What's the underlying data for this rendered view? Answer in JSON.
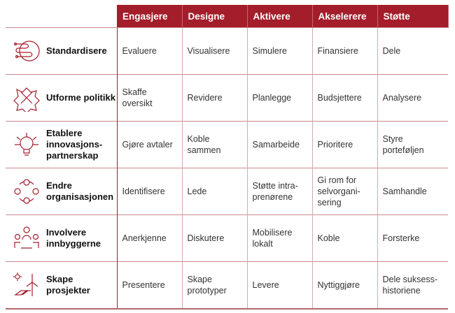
{
  "columns": [
    "Engasjere",
    "Designe",
    "Aktivere",
    "Akselerere",
    "Støtte"
  ],
  "rows": [
    {
      "label": "Standardisere",
      "icon": "tangled-globe-icon",
      "cells": [
        "Evaluere",
        "Visualisere",
        "Simulere",
        "Finansiere",
        "Dele"
      ]
    },
    {
      "label": "Utforme politikk",
      "icon": "puzzle-network-icon",
      "cells": [
        "Skaffe oversikt",
        "Revidere",
        "Planlegge",
        "Budsjettere",
        "Analysere"
      ]
    },
    {
      "label": "Etablere innovasjons-partnerskap",
      "icon": "lightbulb-network-icon",
      "cells": [
        "Gjøre avtaler",
        "Koble sammen",
        "Samarbeide",
        "Prioritere",
        "Styre porteføljen"
      ]
    },
    {
      "label": "Endre organisasjonen",
      "icon": "people-cycle-icon",
      "cells": [
        "Identifisere",
        "Lede",
        "Støtte intra-prenørene",
        "Gi rom for selvorgani-sering",
        "Samhandle"
      ]
    },
    {
      "label": "Involvere innbyggerne",
      "icon": "people-group-icon",
      "cells": [
        "Anerkjenne",
        "Diskutere",
        "Mobilisere lokalt",
        "Koble",
        "Forsterke"
      ]
    },
    {
      "label": "Skape prosjekter",
      "icon": "renewable-energy-icon",
      "cells": [
        "Presentere",
        "Skape prototyper",
        "Levere",
        "Nyttiggjøre",
        "Dele suksess-historiene"
      ]
    }
  ],
  "colors": {
    "accent": "#a31d2b"
  }
}
